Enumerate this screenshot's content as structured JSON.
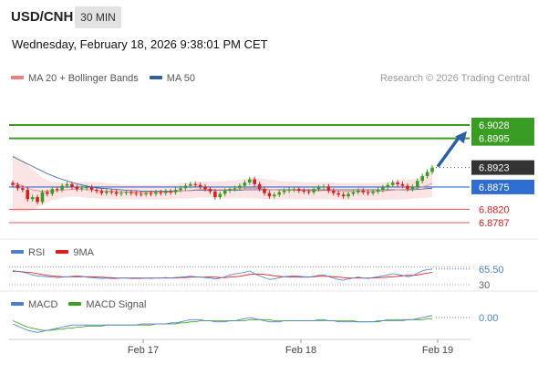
{
  "header": {
    "symbol": "USD/CNH",
    "timeframe": "30 MIN",
    "datetime": "Wednesday, February 18, 2026 9:38:01 PM CET",
    "copyright": "Research © 2026 Trading Central"
  },
  "legend": {
    "main": [
      {
        "label": "MA 20 + Bollinger Bands",
        "color": "#f08080"
      },
      {
        "label": "MA 50",
        "color": "#2f5f9e"
      }
    ],
    "rsi": [
      {
        "label": "RSI",
        "color": "#4d7fd0"
      },
      {
        "label": "9MA",
        "color": "#e01b1b"
      }
    ],
    "macd": [
      {
        "label": "MACD",
        "color": "#4d7fd0"
      },
      {
        "label": "MACD Signal",
        "color": "#3ca11a"
      }
    ]
  },
  "colors": {
    "up": "#3a9d23",
    "down": "#d62020",
    "resistance": "#3a9d23",
    "support": "#e05a5a",
    "pivot": "#2f6ed0",
    "current": "#333333",
    "band_fill": "#fde1e1",
    "arrow": "#2a5ea8"
  },
  "chart_data": [
    {
      "type": "candlestick",
      "x_ticks": [
        "Feb 17",
        "Feb 18",
        "Feb 19"
      ],
      "levels": [
        {
          "value": 6.9028,
          "label": "6.9028",
          "kind": "resistance"
        },
        {
          "value": 6.8995,
          "label": "6.8995",
          "kind": "resistance"
        },
        {
          "value": 6.8923,
          "label": "6.8923",
          "kind": "current"
        },
        {
          "value": 6.8875,
          "label": "6.8875",
          "kind": "pivot"
        },
        {
          "value": 6.882,
          "label": "6.8820",
          "kind": "support"
        },
        {
          "value": 6.8787,
          "label": "6.8787",
          "kind": "support"
        }
      ],
      "close": [
        6.888,
        6.8872,
        6.8868,
        6.8845,
        6.885,
        6.8838,
        6.8862,
        6.8858,
        6.887,
        6.8868,
        6.8878,
        6.8882,
        6.8875,
        6.887,
        6.8872,
        6.8874,
        6.8868,
        6.8865,
        6.886,
        6.8864,
        6.8862,
        6.8858,
        6.886,
        6.8862,
        6.886,
        6.8858,
        6.8857,
        6.886,
        6.8858,
        6.8862,
        6.886,
        6.8864,
        6.8862,
        6.8868,
        6.8872,
        6.8878,
        6.8882,
        6.888,
        6.8876,
        6.887,
        6.8864,
        6.885,
        6.8858,
        6.8866,
        6.887,
        6.8872,
        6.8878,
        6.8886,
        6.8894,
        6.8882,
        6.887,
        6.886,
        6.8852,
        6.8856,
        6.8862,
        6.8866,
        6.8868,
        6.887,
        6.8866,
        6.8864,
        6.8862,
        6.887,
        6.8874,
        6.8876,
        6.8866,
        6.886,
        6.8856,
        6.8852,
        6.8858,
        6.8862,
        6.8866,
        6.8862,
        6.886,
        6.8864,
        6.8868,
        6.8874,
        6.888,
        6.8886,
        6.8882,
        6.8878,
        6.887,
        6.8876,
        6.889,
        6.8902,
        6.8912,
        6.8923
      ],
      "ma20": [
        6.8885,
        6.8882,
        6.8878,
        6.8872,
        6.8868,
        6.8866,
        6.8864,
        6.8864,
        6.8865,
        6.8866,
        6.8867,
        6.8868,
        6.8869,
        6.8869,
        6.8869,
        6.8868,
        6.8868,
        6.8867,
        6.8866,
        6.8865,
        6.8864,
        6.8864,
        6.8863,
        6.8863,
        6.8863,
        6.8862,
        6.8862,
        6.8862,
        6.8862,
        6.8862,
        6.8862,
        6.8862,
        6.8863,
        6.8864,
        6.8865,
        6.8866,
        6.8867,
        6.8868,
        6.8869,
        6.8869,
        6.8869,
        6.8868,
        6.8868,
        6.8868,
        6.8869,
        6.8869,
        6.887,
        6.8871,
        6.8872,
        6.8872,
        6.8871,
        6.887,
        6.8869,
        6.8868,
        6.8867,
        6.8867,
        6.8867,
        6.8867,
        6.8866,
        6.8866,
        6.8866,
        6.8866,
        6.8866,
        6.8866,
        6.8866,
        6.8865,
        6.8864,
        6.8864,
        6.8864,
        6.8864,
        6.8864,
        6.8864,
        6.8864,
        6.8864,
        6.8864,
        6.8865,
        6.8866,
        6.8867,
        6.8868,
        6.8869,
        6.8869,
        6.887,
        6.8872,
        6.8875,
        6.8879,
        6.8884
      ],
      "ma50": [
        6.895,
        6.8944,
        6.8938,
        6.8932,
        6.8926,
        6.892,
        6.8914,
        6.8908,
        6.8903,
        6.8898,
        6.8894,
        6.889,
        6.8886,
        6.8883,
        6.888,
        6.8877,
        6.8875,
        6.8873,
        6.8872,
        6.8871,
        6.887,
        6.8869,
        6.8868,
        6.8867,
        6.8866,
        6.8866,
        6.8865,
        6.8865,
        6.8865,
        6.8865,
        6.8865,
        6.8865,
        6.8865,
        6.8865,
        6.8866,
        6.8866,
        6.8866,
        6.8867,
        6.8867,
        6.8867,
        6.8867,
        6.8867,
        6.8867,
        6.8867,
        6.8867,
        6.8867,
        6.8867,
        6.8868,
        6.8868,
        6.8868,
        6.8868,
        6.8868,
        6.8868,
        6.8868,
        6.8868,
        6.8868,
        6.8868,
        6.8868,
        6.8868,
        6.8868,
        6.8868,
        6.8868,
        6.8868,
        6.8868,
        6.8868,
        6.8868,
        6.8868,
        6.8868,
        6.8868,
        6.8868,
        6.8868,
        6.8868,
        6.8868,
        6.8868,
        6.8868,
        6.8868,
        6.8868,
        6.8868,
        6.8868,
        6.8868,
        6.8868,
        6.8868,
        6.8869,
        6.887,
        6.8871,
        6.8872
      ],
      "band_width": [
        0.007,
        0.0068,
        0.0064,
        0.0058,
        0.005,
        0.0042,
        0.0034,
        0.0028,
        0.0024,
        0.0021,
        0.0019,
        0.0018,
        0.0018,
        0.0018,
        0.0019,
        0.002,
        0.002,
        0.002,
        0.002,
        0.002,
        0.0019,
        0.0019,
        0.0018,
        0.0018,
        0.0018,
        0.0018,
        0.0018,
        0.0018,
        0.0018,
        0.0018,
        0.0018,
        0.0018,
        0.0018,
        0.0018,
        0.0019,
        0.002,
        0.002,
        0.002,
        0.002,
        0.002,
        0.002,
        0.0021,
        0.0022,
        0.0022,
        0.0022,
        0.0022,
        0.0023,
        0.0024,
        0.0025,
        0.0025,
        0.0025,
        0.0025,
        0.0024,
        0.0024,
        0.0023,
        0.0022,
        0.0022,
        0.0022,
        0.0022,
        0.0021,
        0.0021,
        0.0021,
        0.0021,
        0.0021,
        0.0021,
        0.0021,
        0.0021,
        0.0021,
        0.0021,
        0.0021,
        0.0021,
        0.0021,
        0.0021,
        0.0021,
        0.0021,
        0.0021,
        0.0022,
        0.0023,
        0.0024,
        0.0024,
        0.0024,
        0.0024,
        0.0025,
        0.0027,
        0.003,
        0.0033
      ],
      "forecast_target": 6.8995
    },
    {
      "type": "line",
      "name": "RSI",
      "value_label": "65.50",
      "tick_label": "30",
      "y_range": [
        30,
        70
      ],
      "rsi": [
        62,
        60,
        58,
        56,
        52,
        50,
        49,
        48,
        47,
        46,
        47,
        48,
        49,
        50,
        49,
        47,
        46,
        45,
        44,
        45,
        44,
        44,
        45,
        45,
        44,
        44,
        44,
        45,
        44,
        45,
        45,
        46,
        45,
        46,
        47,
        48,
        49,
        48,
        47,
        46,
        45,
        43,
        45,
        48,
        52,
        54,
        56,
        58,
        61,
        55,
        50,
        46,
        42,
        43,
        46,
        48,
        49,
        50,
        49,
        48,
        47,
        49,
        51,
        52,
        48,
        45,
        42,
        40,
        43,
        45,
        47,
        45,
        44,
        46,
        48,
        50,
        52,
        55,
        53,
        51,
        48,
        50,
        56,
        61,
        64,
        65.5
      ],
      "ma9": [
        60,
        60,
        59,
        58,
        57,
        55,
        53,
        51,
        50,
        49,
        48,
        48,
        48,
        48,
        48,
        48,
        48,
        47,
        47,
        46,
        46,
        45,
        45,
        45,
        45,
        45,
        45,
        45,
        45,
        45,
        45,
        45,
        45,
        45,
        46,
        46,
        47,
        47,
        47,
        47,
        47,
        47,
        46,
        46,
        47,
        48,
        49,
        51,
        53,
        54,
        54,
        53,
        52,
        50,
        49,
        48,
        47,
        47,
        47,
        47,
        47,
        48,
        49,
        49,
        49,
        48,
        47,
        46,
        45,
        45,
        45,
        45,
        45,
        45,
        46,
        46,
        47,
        48,
        49,
        50,
        51,
        51,
        52,
        54,
        56,
        58
      ]
    },
    {
      "type": "line",
      "name": "MACD",
      "value_label": "0.00",
      "macd": [
        -0.0006,
        -0.0008,
        -0.001,
        -0.0012,
        -0.0013,
        -0.0014,
        -0.0013,
        -0.0012,
        -0.0011,
        -0.001,
        -0.0009,
        -0.0008,
        -0.0007,
        -0.0007,
        -0.0007,
        -0.0007,
        -0.0007,
        -0.0007,
        -0.0007,
        -0.0007,
        -0.0007,
        -0.0007,
        -0.0007,
        -0.0007,
        -0.0007,
        -0.0007,
        -0.0006,
        -0.0006,
        -0.0006,
        -0.0006,
        -0.0006,
        -0.0006,
        -0.0005,
        -0.0005,
        -0.0004,
        -0.0003,
        -0.0002,
        -0.0002,
        -0.0002,
        -0.0003,
        -0.0003,
        -0.0004,
        -0.0004,
        -0.0004,
        -0.0003,
        -0.0003,
        -0.0002,
        -0.0001,
        0.0,
        -0.0001,
        -0.0002,
        -0.0003,
        -0.0004,
        -0.0004,
        -0.0004,
        -0.0003,
        -0.0003,
        -0.0003,
        -0.0003,
        -0.0003,
        -0.0003,
        -0.0003,
        -0.0002,
        -0.0002,
        -0.0003,
        -0.0003,
        -0.0004,
        -0.0004,
        -0.0004,
        -0.0004,
        -0.0004,
        -0.0004,
        -0.0004,
        -0.0004,
        -0.0003,
        -0.0003,
        -0.0002,
        -0.0002,
        -0.0002,
        -0.0002,
        -0.0002,
        -0.0002,
        -0.0001,
        0.0,
        0.0001,
        0.0002
      ],
      "signal": [
        -0.0003,
        -0.0005,
        -0.0007,
        -0.0009,
        -0.001,
        -0.0011,
        -0.0012,
        -0.0012,
        -0.0012,
        -0.0011,
        -0.0011,
        -0.001,
        -0.001,
        -0.0009,
        -0.0009,
        -0.0008,
        -0.0008,
        -0.0008,
        -0.0008,
        -0.0007,
        -0.0007,
        -0.0007,
        -0.0007,
        -0.0007,
        -0.0007,
        -0.0007,
        -0.0007,
        -0.0007,
        -0.0007,
        -0.0006,
        -0.0006,
        -0.0006,
        -0.0006,
        -0.0006,
        -0.0005,
        -0.0005,
        -0.0004,
        -0.0004,
        -0.0003,
        -0.0003,
        -0.0003,
        -0.0003,
        -0.0003,
        -0.0003,
        -0.0003,
        -0.0003,
        -0.0003,
        -0.0003,
        -0.0002,
        -0.0002,
        -0.0002,
        -0.0002,
        -0.0002,
        -0.0003,
        -0.0003,
        -0.0003,
        -0.0003,
        -0.0003,
        -0.0003,
        -0.0003,
        -0.0003,
        -0.0003,
        -0.0003,
        -0.0003,
        -0.0003,
        -0.0003,
        -0.0003,
        -0.0003,
        -0.0003,
        -0.0003,
        -0.0004,
        -0.0004,
        -0.0004,
        -0.0004,
        -0.0004,
        -0.0003,
        -0.0003,
        -0.0003,
        -0.0003,
        -0.0003,
        -0.0002,
        -0.0002,
        -0.0002,
        -0.0002,
        -0.0001,
        -0.0001
      ]
    }
  ]
}
